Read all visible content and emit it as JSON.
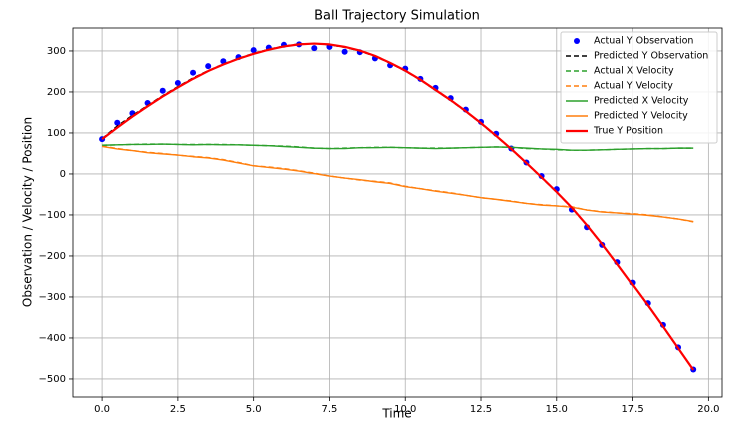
{
  "chart_data": {
    "type": "line",
    "title": "Ball Trajectory Simulation",
    "x_label": "Time",
    "y_label": "Observation / Velocity / Position",
    "grid": true,
    "legend": "upper right",
    "xlim": [
      -0.96,
      20.45
    ],
    "ylim": [
      -544,
      356
    ],
    "xticks": [
      {
        "value": 0,
        "label": "0.0"
      },
      {
        "value": 2.5,
        "label": "2.5"
      },
      {
        "value": 5,
        "label": "5.0"
      },
      {
        "value": 7.5,
        "label": "7.5"
      },
      {
        "value": 10,
        "label": "10.0"
      },
      {
        "value": 12.5,
        "label": "12.5"
      },
      {
        "value": 15,
        "label": "15.0"
      },
      {
        "value": 17.5,
        "label": "17.5"
      },
      {
        "value": 20,
        "label": "20.0"
      }
    ],
    "yticks": [
      {
        "value": -500,
        "label": "−500"
      },
      {
        "value": -400,
        "label": "−400"
      },
      {
        "value": -300,
        "label": "−300"
      },
      {
        "value": -200,
        "label": "−200"
      },
      {
        "value": -100,
        "label": "−100"
      },
      0,
      100,
      200,
      300
    ],
    "x": [
      0,
      0.5,
      1,
      1.5,
      2,
      2.5,
      3,
      3.5,
      4,
      4.5,
      5,
      5.5,
      6,
      6.5,
      7,
      7.5,
      8,
      8.5,
      9,
      9.5,
      10,
      10.5,
      11,
      11.5,
      12,
      12.5,
      13,
      13.5,
      14,
      14.5,
      15,
      15.5,
      16,
      16.5,
      17,
      17.5,
      18,
      18.5,
      19,
      19.5
    ],
    "series": [
      {
        "name": "Actual Y Observation",
        "color": "#0000ff",
        "style": "marker",
        "values": [
          85,
          125,
          148,
          173,
          203,
          222,
          247,
          263,
          275,
          285,
          302,
          308,
          315,
          316,
          307,
          310,
          298,
          297,
          282,
          265,
          257,
          232,
          210,
          185,
          157,
          127,
          98,
          62,
          28,
          -5,
          -37,
          -87,
          -130,
          -173,
          -215,
          -265,
          -315,
          -368,
          -423,
          -477
        ]
      },
      {
        "name": "Predicted Y Observation",
        "color": "#000000",
        "style": "dashed",
        "values": [
          86,
          117,
          143,
          167,
          191,
          213,
          234,
          252,
          268,
          282,
          294,
          304,
          312,
          317,
          318,
          315,
          309,
          300,
          287,
          270,
          251,
          229,
          204,
          179,
          152,
          123,
          92,
          60,
          26,
          -9,
          -45,
          -83,
          -126,
          -172,
          -220,
          -270,
          -321,
          -373,
          -426,
          -478
        ]
      },
      {
        "name": "Actual X Velocity",
        "color": "#2ca02c",
        "style": "dashed",
        "values": [
          70,
          71,
          72,
          73,
          73,
          72,
          72,
          72,
          72,
          71,
          70,
          69,
          68,
          66,
          63,
          62,
          63,
          64,
          65,
          65,
          64,
          63,
          63,
          63,
          64,
          65,
          66,
          65,
          62,
          61,
          59,
          58,
          58,
          59,
          60,
          61,
          62,
          62,
          63,
          63
        ]
      },
      {
        "name": "Actual Y Velocity",
        "color": "#ff7f0e",
        "style": "dashed",
        "values": [
          68,
          62,
          57,
          53,
          50,
          46,
          43,
          40,
          35,
          28,
          20,
          17,
          13,
          8,
          2,
          -5,
          -10,
          -15,
          -18,
          -22,
          -30,
          -36,
          -41,
          -46,
          -52,
          -58,
          -62,
          -66,
          -72,
          -75,
          -78,
          -80,
          -88,
          -92,
          -95,
          -97,
          -100,
          -105,
          -110,
          -117
        ]
      },
      {
        "name": "Predicted X Velocity",
        "color": "#2ca02c",
        "style": "solid",
        "values": [
          70,
          71,
          72,
          72,
          73,
          72,
          71,
          72,
          71,
          71,
          70,
          69,
          67,
          65,
          63,
          62,
          62,
          64,
          64,
          65,
          64,
          63,
          62,
          63,
          64,
          65,
          66,
          65,
          63,
          61,
          60,
          58,
          58,
          59,
          60,
          61,
          62,
          62,
          63,
          63
        ]
      },
      {
        "name": "Predicted Y Velocity",
        "color": "#ff7f0e",
        "style": "solid",
        "values": [
          67,
          61,
          57,
          52,
          49,
          46,
          42,
          39,
          34,
          27,
          20,
          16,
          12,
          7,
          1,
          -5,
          -10,
          -14,
          -19,
          -23,
          -31,
          -36,
          -42,
          -47,
          -52,
          -58,
          -62,
          -67,
          -72,
          -76,
          -78,
          -81,
          -88,
          -93,
          -95,
          -98,
          -101,
          -105,
          -110,
          -116
        ]
      },
      {
        "name": "True Y Position",
        "color": "#ff0000",
        "style": "thick",
        "values": [
          85,
          113,
          140,
          165,
          189,
          211,
          232,
          251,
          267,
          281,
          293,
          303,
          311,
          316,
          318,
          316,
          310,
          301,
          288,
          271,
          252,
          230,
          205,
          180,
          153,
          124,
          93,
          61,
          27,
          -8,
          -44,
          -82,
          -125,
          -171,
          -220,
          -270,
          -320,
          -372,
          -425,
          -478
        ]
      }
    ]
  }
}
